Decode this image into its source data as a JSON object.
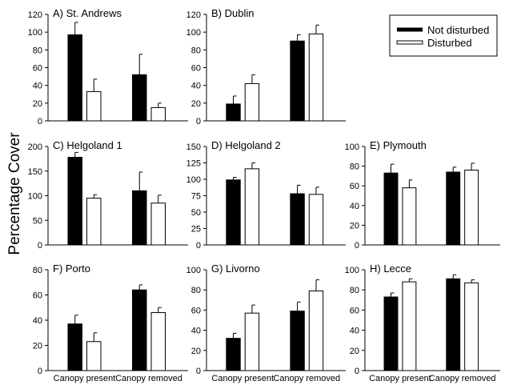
{
  "figure": {
    "ylabel": "Percentage Cover",
    "legend": {
      "placement": "top-right",
      "entries": [
        {
          "label": "Not disturbed",
          "color": "#000000"
        },
        {
          "label": "Disturbed",
          "color": "#ffffff"
        }
      ]
    }
  },
  "chart_data": [
    {
      "type": "bar",
      "title": "A) St. Andrews",
      "categories": [
        "Canopy present",
        "Canopy removed"
      ],
      "show_category_labels": false,
      "ylim": [
        0,
        120
      ],
      "yticks": [
        0,
        20,
        40,
        60,
        80,
        100,
        120
      ],
      "series": [
        {
          "name": "Not disturbed",
          "values": [
            97,
            52
          ],
          "errors": [
            14,
            23
          ]
        },
        {
          "name": "Disturbed",
          "values": [
            33,
            15
          ],
          "errors": [
            14,
            5
          ]
        }
      ]
    },
    {
      "type": "bar",
      "title": "B) Dublin",
      "categories": [
        "Canopy present",
        "Canopy removed"
      ],
      "show_category_labels": false,
      "ylim": [
        0,
        120
      ],
      "yticks": [
        0,
        20,
        40,
        60,
        80,
        100,
        120
      ],
      "series": [
        {
          "name": "Not disturbed",
          "values": [
            19,
            90
          ],
          "errors": [
            9,
            7
          ]
        },
        {
          "name": "Disturbed",
          "values": [
            42,
            98
          ],
          "errors": [
            10,
            10
          ]
        }
      ]
    },
    {
      "type": "bar",
      "title": "C) Helgoland 1",
      "categories": [
        "Canopy present",
        "Canopy removed"
      ],
      "show_category_labels": false,
      "ylim": [
        0,
        200
      ],
      "yticks": [
        0,
        50,
        100,
        150,
        200
      ],
      "series": [
        {
          "name": "Not disturbed",
          "values": [
            178,
            110
          ],
          "errors": [
            10,
            38
          ]
        },
        {
          "name": "Disturbed",
          "values": [
            95,
            85
          ],
          "errors": [
            7,
            16
          ]
        }
      ]
    },
    {
      "type": "bar",
      "title": "D) Helgoland 2",
      "categories": [
        "Canopy present",
        "Canopy removed"
      ],
      "show_category_labels": false,
      "ylim": [
        0,
        150
      ],
      "yticks": [
        0,
        25,
        50,
        75,
        100,
        125,
        150
      ],
      "series": [
        {
          "name": "Not disturbed",
          "values": [
            99,
            78
          ],
          "errors": [
            4,
            13
          ]
        },
        {
          "name": "Disturbed",
          "values": [
            116,
            77
          ],
          "errors": [
            9,
            11
          ]
        }
      ]
    },
    {
      "type": "bar",
      "title": "E) Plymouth",
      "categories": [
        "Canopy present",
        "Canopy removed"
      ],
      "show_category_labels": false,
      "ylim": [
        0,
        100
      ],
      "yticks": [
        0,
        20,
        40,
        60,
        80,
        100
      ],
      "series": [
        {
          "name": "Not disturbed",
          "values": [
            73,
            74
          ],
          "errors": [
            9,
            5
          ]
        },
        {
          "name": "Disturbed",
          "values": [
            58,
            76
          ],
          "errors": [
            8,
            7
          ]
        }
      ]
    },
    {
      "type": "bar",
      "title": "F) Porto",
      "categories": [
        "Canopy present",
        "Canopy removed"
      ],
      "show_category_labels": true,
      "ylim": [
        0,
        80
      ],
      "yticks": [
        0,
        20,
        40,
        60,
        80
      ],
      "series": [
        {
          "name": "Not disturbed",
          "values": [
            37,
            64
          ],
          "errors": [
            7,
            4
          ]
        },
        {
          "name": "Disturbed",
          "values": [
            23,
            46
          ],
          "errors": [
            7,
            4
          ]
        }
      ]
    },
    {
      "type": "bar",
      "title": "G) Livorno",
      "categories": [
        "Canopy present",
        "Canopy removed"
      ],
      "show_category_labels": true,
      "ylim": [
        0,
        100
      ],
      "yticks": [
        0,
        20,
        40,
        60,
        80,
        100
      ],
      "series": [
        {
          "name": "Not disturbed",
          "values": [
            32,
            59
          ],
          "errors": [
            5,
            9
          ]
        },
        {
          "name": "Disturbed",
          "values": [
            57,
            79
          ],
          "errors": [
            8,
            11
          ]
        }
      ]
    },
    {
      "type": "bar",
      "title": "H) Lecce",
      "categories": [
        "Canopy present",
        "Canopy removed"
      ],
      "show_category_labels": true,
      "ylim": [
        0,
        100
      ],
      "yticks": [
        0,
        20,
        40,
        60,
        80,
        100
      ],
      "series": [
        {
          "name": "Not disturbed",
          "values": [
            73,
            91
          ],
          "errors": [
            4,
            4
          ]
        },
        {
          "name": "Disturbed",
          "values": [
            88,
            87
          ],
          "errors": [
            3,
            3
          ]
        }
      ]
    }
  ]
}
